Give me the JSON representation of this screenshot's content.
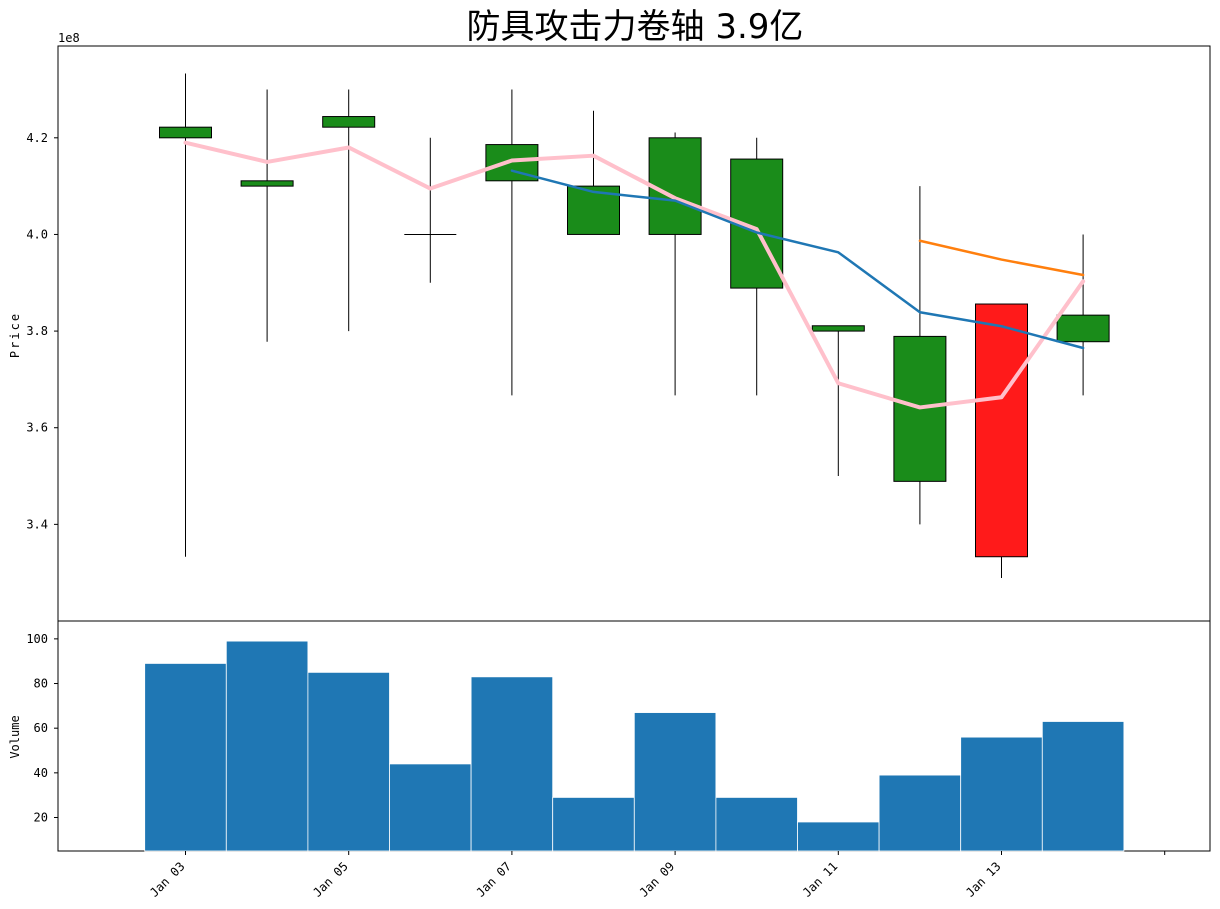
{
  "chart_data": [
    {
      "type": "candlestick",
      "title": "防具攻击力卷轴  3.9亿",
      "ylabel": "Price",
      "offset_label": "1e8",
      "ylim": [
        3.2,
        4.39
      ],
      "yticks": [
        3.4,
        3.6,
        3.8,
        4.0,
        4.2
      ],
      "ytick_labels": [
        "3.4",
        "3.6",
        "3.8",
        "4.0",
        "4.2"
      ],
      "dates": [
        "2021-01-03",
        "2021-01-04",
        "2021-01-05",
        "2021-01-06",
        "2021-01-07",
        "2021-01-08",
        "2021-01-09",
        "2021-01-10",
        "2021-01-11",
        "2021-01-12",
        "2021-01-13",
        "2021-01-14"
      ],
      "ohlc": [
        {
          "date": "2021-01-03",
          "open": 4.2,
          "high": 4.333,
          "low": 3.333,
          "close": 4.222
        },
        {
          "date": "2021-01-04",
          "open": 4.1,
          "high": 4.3,
          "low": 3.778,
          "close": 4.111
        },
        {
          "date": "2021-01-05",
          "open": 4.222,
          "high": 4.3,
          "low": 3.8,
          "close": 4.244
        },
        {
          "date": "2021-01-06",
          "open": 4.0,
          "high": 4.2,
          "low": 3.9,
          "close": 4.0
        },
        {
          "date": "2021-01-07",
          "open": 4.111,
          "high": 4.3,
          "low": 3.667,
          "close": 4.186
        },
        {
          "date": "2021-01-08",
          "open": 4.0,
          "high": 4.256,
          "low": 4.0,
          "close": 4.1
        },
        {
          "date": "2021-01-09",
          "open": 4.0,
          "high": 4.211,
          "low": 3.667,
          "close": 4.2
        },
        {
          "date": "2021-01-10",
          "open": 3.889,
          "high": 4.2,
          "low": 3.667,
          "close": 4.156
        },
        {
          "date": "2021-01-11",
          "open": 3.8,
          "high": 3.811,
          "low": 3.5,
          "close": 3.811
        },
        {
          "date": "2021-01-12",
          "open": 3.489,
          "high": 4.1,
          "low": 3.4,
          "close": 3.789
        },
        {
          "date": "2021-01-13",
          "open": 3.856,
          "high": 3.856,
          "low": 3.289,
          "close": 3.333
        },
        {
          "date": "2021-01-14",
          "open": 3.778,
          "high": 4.0,
          "low": 3.667,
          "close": 3.833
        }
      ],
      "candle_colors": {
        "up": "#1a8c1a",
        "down": "#ff1a1a",
        "edge": "#000000"
      },
      "lines": [
        {
          "color": "#ffc0cb",
          "width": 4,
          "dates": [
            "2021-01-03",
            "2021-01-04",
            "2021-01-05",
            "2021-01-06",
            "2021-01-07",
            "2021-01-08",
            "2021-01-09",
            "2021-01-10",
            "2021-01-11",
            "2021-01-12",
            "2021-01-13",
            "2021-01-14"
          ],
          "values": [
            4.19,
            4.15,
            4.18,
            4.095,
            4.153,
            4.163,
            4.075,
            4.011,
            3.692,
            3.642,
            3.663,
            3.903
          ]
        },
        {
          "color": "#1f77b4",
          "width": 2.5,
          "dates": [
            "2021-01-07",
            "2021-01-08",
            "2021-01-09",
            "2021-01-10",
            "2021-01-11",
            "2021-01-12",
            "2021-01-13",
            "2021-01-14"
          ],
          "values": [
            4.132,
            4.088,
            4.07,
            4.004,
            3.963,
            3.839,
            3.81,
            3.765
          ]
        },
        {
          "color": "#ff7f0e",
          "width": 2.5,
          "dates": [
            "2021-01-12",
            "2021-01-13",
            "2021-01-14"
          ],
          "values": [
            3.987,
            3.948,
            3.916
          ]
        }
      ]
    },
    {
      "type": "bar",
      "ylabel": "Volume",
      "ylim": [
        5,
        108
      ],
      "yticks": [
        20,
        40,
        60,
        80,
        100
      ],
      "ytick_labels": [
        "20",
        "40",
        "60",
        "80",
        "100"
      ],
      "bar_color": "#1f77b4",
      "dates": [
        "2021-01-03",
        "2021-01-04",
        "2021-01-05",
        "2021-01-06",
        "2021-01-07",
        "2021-01-08",
        "2021-01-09",
        "2021-01-10",
        "2021-01-11",
        "2021-01-12",
        "2021-01-13",
        "2021-01-14"
      ],
      "values": [
        89,
        99,
        85,
        44,
        83,
        29,
        67,
        29,
        18,
        39,
        56,
        63
      ],
      "xticks": [
        "2021-01-03",
        "2021-01-05",
        "2021-01-07",
        "2021-01-09",
        "2021-01-11",
        "2021-01-13",
        "2021-01-15"
      ],
      "xtick_labels": [
        "Jan 03",
        "Jan 05",
        "Jan 07",
        "Jan 09",
        "Jan 11",
        "Jan 13",
        ""
      ]
    }
  ]
}
